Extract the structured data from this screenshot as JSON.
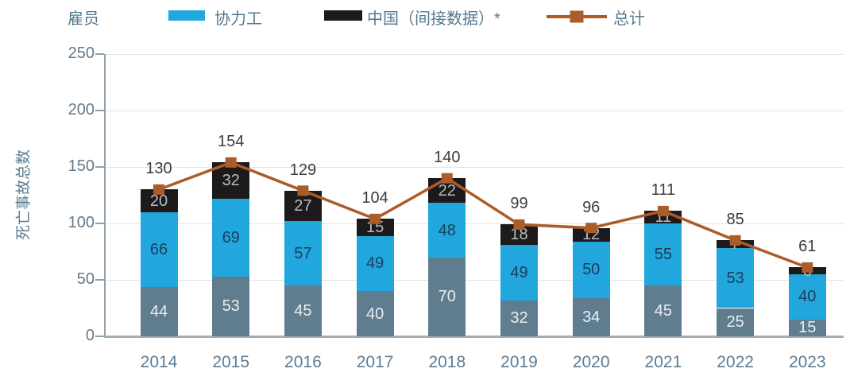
{
  "legend": {
    "employee_label": "雇员",
    "contractor_label": "协力工",
    "china_label": "中国（间接数据）*",
    "total_label": "总计"
  },
  "chart_data": {
    "type": "bar",
    "subtype": "stacked-bar-with-line",
    "categories": [
      "2014",
      "2015",
      "2016",
      "2017",
      "2018",
      "2019",
      "2020",
      "2021",
      "2022",
      "2023"
    ],
    "series": [
      {
        "name": "雇员",
        "color": "#5f7d8e",
        "label_color": "#e9eef2",
        "values": [
          44,
          53,
          45,
          40,
          70,
          32,
          34,
          45,
          25,
          15
        ]
      },
      {
        "name": "协力工",
        "color": "#21a7de",
        "label_color": "#1b3e5c",
        "values": [
          66,
          69,
          57,
          49,
          48,
          49,
          50,
          55,
          53,
          40
        ]
      },
      {
        "name": "中国（间接数据）*",
        "color": "#1c1a1a",
        "label_color": "#b9bcbe",
        "values": [
          20,
          32,
          27,
          15,
          22,
          18,
          12,
          11,
          7,
          6
        ]
      }
    ],
    "line_series": {
      "name": "总计",
      "color": "#ab5c28",
      "values": [
        130,
        154,
        129,
        104,
        140,
        99,
        96,
        111,
        85,
        61
      ]
    },
    "title": "",
    "xlabel": "",
    "ylabel": "死亡事故总数",
    "ylim": [
      0,
      250
    ],
    "yticks": [
      0,
      50,
      100,
      150,
      200,
      250
    ],
    "grid": true,
    "legend_position": "top"
  },
  "colors": {
    "grid": "#e3e3e3",
    "axis": "#90a0ab",
    "baseline": "#a3aeb6",
    "tick_text": "#64798a",
    "category_text": "#5b7c94",
    "legend_text": "#54788f",
    "total_label_text": "#3c3c3c"
  }
}
